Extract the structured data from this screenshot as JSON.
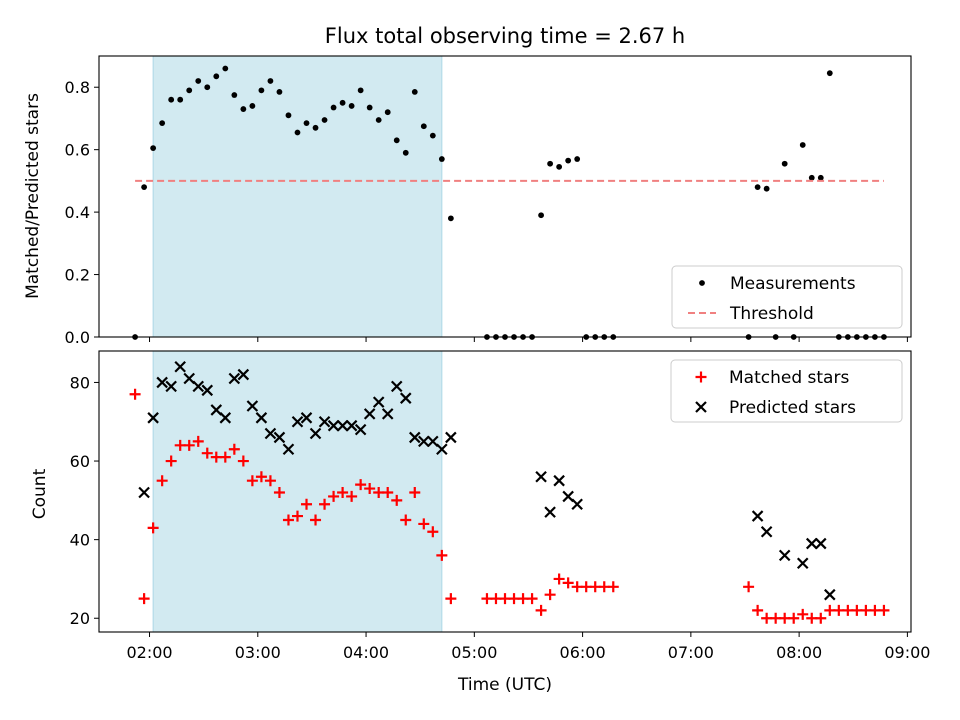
{
  "chart_data": {
    "title": "Flux total observing time = 2.67 h",
    "xlabel": "Time (UTC)",
    "x_ticks": [
      "02:00",
      "03:00",
      "04:00",
      "05:00",
      "06:00",
      "07:00",
      "08:00",
      "09:00"
    ],
    "xlim": [
      "01:32",
      "09:02"
    ],
    "shaded_interval": {
      "start": "02:02",
      "end": "04:42",
      "color": "#add8e6"
    },
    "panels": [
      {
        "type": "scatter",
        "ylabel": "Matched/Predicted stars",
        "ylim": [
          0,
          0.9
        ],
        "y_ticks": [
          "0.0",
          "0.2",
          "0.4",
          "0.6",
          "0.8"
        ],
        "legend_position": "lower-right",
        "series": [
          {
            "name": "Measurements",
            "marker": "dot",
            "color": "#000000",
            "points": [
              [
                "01:52",
                0.0
              ],
              [
                "01:57",
                0.48
              ],
              [
                "02:02",
                0.605
              ],
              [
                "02:07",
                0.685
              ],
              [
                "02:12",
                0.76
              ],
              [
                "02:17",
                0.76
              ],
              [
                "02:22",
                0.79
              ],
              [
                "02:27",
                0.82
              ],
              [
                "02:32",
                0.8
              ],
              [
                "02:37",
                0.835
              ],
              [
                "02:42",
                0.86
              ],
              [
                "02:47",
                0.775
              ],
              [
                "02:52",
                0.73
              ],
              [
                "02:57",
                0.74
              ],
              [
                "03:02",
                0.79
              ],
              [
                "03:07",
                0.82
              ],
              [
                "03:12",
                0.785
              ],
              [
                "03:17",
                0.71
              ],
              [
                "03:22",
                0.655
              ],
              [
                "03:27",
                0.685
              ],
              [
                "03:32",
                0.67
              ],
              [
                "03:37",
                0.695
              ],
              [
                "03:42",
                0.735
              ],
              [
                "03:47",
                0.75
              ],
              [
                "03:52",
                0.74
              ],
              [
                "03:57",
                0.79
              ],
              [
                "04:02",
                0.735
              ],
              [
                "04:07",
                0.695
              ],
              [
                "04:12",
                0.72
              ],
              [
                "04:17",
                0.63
              ],
              [
                "04:22",
                0.59
              ],
              [
                "04:27",
                0.785
              ],
              [
                "04:32",
                0.675
              ],
              [
                "04:37",
                0.645
              ],
              [
                "04:42",
                0.57
              ],
              [
                "04:47",
                0.38
              ],
              [
                "05:07",
                0.0
              ],
              [
                "05:12",
                0.0
              ],
              [
                "05:17",
                0.0
              ],
              [
                "05:22",
                0.0
              ],
              [
                "05:27",
                0.0
              ],
              [
                "05:32",
                0.0
              ],
              [
                "05:37",
                0.39
              ],
              [
                "05:42",
                0.555
              ],
              [
                "05:47",
                0.545
              ],
              [
                "05:52",
                0.565
              ],
              [
                "05:57",
                0.57
              ],
              [
                "06:02",
                0.0
              ],
              [
                "06:07",
                0.0
              ],
              [
                "06:12",
                0.0
              ],
              [
                "06:17",
                0.0
              ],
              [
                "07:32",
                0.0
              ],
              [
                "07:37",
                0.48
              ],
              [
                "07:42",
                0.475
              ],
              [
                "07:47",
                0.0
              ],
              [
                "07:52",
                0.555
              ],
              [
                "07:57",
                0.0
              ],
              [
                "08:02",
                0.615
              ],
              [
                "08:07",
                0.51
              ],
              [
                "08:12",
                0.51
              ],
              [
                "08:17",
                0.845
              ],
              [
                "08:22",
                0.0
              ],
              [
                "08:27",
                0.0
              ],
              [
                "08:32",
                0.0
              ],
              [
                "08:37",
                0.0
              ],
              [
                "08:42",
                0.0
              ],
              [
                "08:47",
                0.0
              ]
            ]
          },
          {
            "name": "Threshold",
            "style": "dashed-line",
            "color": "#f08080",
            "points": [
              [
                "01:52",
                0.5
              ],
              [
                "08:47",
                0.5
              ]
            ]
          }
        ]
      },
      {
        "type": "scatter",
        "ylabel": "Count",
        "ylim": [
          16.5,
          88
        ],
        "y_ticks": [
          "20",
          "40",
          "60",
          "80"
        ],
        "legend_position": "top-right",
        "series": [
          {
            "name": "Matched stars",
            "marker": "plus",
            "color": "#ff0000",
            "points": [
              [
                "01:52",
                77
              ],
              [
                "01:57",
                25
              ],
              [
                "02:02",
                43
              ],
              [
                "02:07",
                55
              ],
              [
                "02:12",
                60
              ],
              [
                "02:17",
                64
              ],
              [
                "02:22",
                64
              ],
              [
                "02:27",
                65
              ],
              [
                "02:32",
                62
              ],
              [
                "02:37",
                61
              ],
              [
                "02:42",
                61
              ],
              [
                "02:47",
                63
              ],
              [
                "02:52",
                60
              ],
              [
                "02:57",
                55
              ],
              [
                "03:02",
                56
              ],
              [
                "03:07",
                55
              ],
              [
                "03:12",
                52
              ],
              [
                "03:17",
                45
              ],
              [
                "03:22",
                46
              ],
              [
                "03:27",
                49
              ],
              [
                "03:32",
                45
              ],
              [
                "03:37",
                49
              ],
              [
                "03:42",
                51
              ],
              [
                "03:47",
                52
              ],
              [
                "03:52",
                51
              ],
              [
                "03:57",
                54
              ],
              [
                "04:02",
                53
              ],
              [
                "04:07",
                52
              ],
              [
                "04:12",
                52
              ],
              [
                "04:17",
                50
              ],
              [
                "04:22",
                45
              ],
              [
                "04:27",
                52
              ],
              [
                "04:32",
                44
              ],
              [
                "04:37",
                42
              ],
              [
                "04:42",
                36
              ],
              [
                "04:47",
                25
              ],
              [
                "05:07",
                25
              ],
              [
                "05:12",
                25
              ],
              [
                "05:17",
                25
              ],
              [
                "05:22",
                25
              ],
              [
                "05:27",
                25
              ],
              [
                "05:32",
                25
              ],
              [
                "05:37",
                22
              ],
              [
                "05:42",
                26
              ],
              [
                "05:47",
                30
              ],
              [
                "05:52",
                29
              ],
              [
                "05:57",
                28
              ],
              [
                "06:02",
                28
              ],
              [
                "06:07",
                28
              ],
              [
                "06:12",
                28
              ],
              [
                "06:17",
                28
              ],
              [
                "07:32",
                28
              ],
              [
                "07:37",
                22
              ],
              [
                "07:42",
                20
              ],
              [
                "07:47",
                20
              ],
              [
                "07:52",
                20
              ],
              [
                "07:57",
                20
              ],
              [
                "08:02",
                21
              ],
              [
                "08:07",
                20
              ],
              [
                "08:12",
                20
              ],
              [
                "08:17",
                22
              ],
              [
                "08:22",
                22
              ],
              [
                "08:27",
                22
              ],
              [
                "08:32",
                22
              ],
              [
                "08:37",
                22
              ],
              [
                "08:42",
                22
              ],
              [
                "08:47",
                22
              ]
            ]
          },
          {
            "name": "Predicted stars",
            "marker": "cross",
            "color": "#000000",
            "points": [
              [
                "01:57",
                52
              ],
              [
                "02:02",
                71
              ],
              [
                "02:07",
                80
              ],
              [
                "02:12",
                79
              ],
              [
                "02:17",
                84
              ],
              [
                "02:22",
                81
              ],
              [
                "02:27",
                79
              ],
              [
                "02:32",
                78
              ],
              [
                "02:37",
                73
              ],
              [
                "02:42",
                71
              ],
              [
                "02:47",
                81
              ],
              [
                "02:52",
                82
              ],
              [
                "02:57",
                74
              ],
              [
                "03:02",
                71
              ],
              [
                "03:07",
                67
              ],
              [
                "03:12",
                66
              ],
              [
                "03:17",
                63
              ],
              [
                "03:22",
                70
              ],
              [
                "03:27",
                71
              ],
              [
                "03:32",
                67
              ],
              [
                "03:37",
                70
              ],
              [
                "03:42",
                69
              ],
              [
                "03:47",
                69
              ],
              [
                "03:52",
                69
              ],
              [
                "03:57",
                68
              ],
              [
                "04:02",
                72
              ],
              [
                "04:07",
                75
              ],
              [
                "04:12",
                72
              ],
              [
                "04:17",
                79
              ],
              [
                "04:22",
                76
              ],
              [
                "04:27",
                66
              ],
              [
                "04:32",
                65
              ],
              [
                "04:37",
                65
              ],
              [
                "04:42",
                63
              ],
              [
                "04:47",
                66
              ],
              [
                "05:37",
                56
              ],
              [
                "05:42",
                47
              ],
              [
                "05:47",
                55
              ],
              [
                "05:52",
                51
              ],
              [
                "05:57",
                49
              ],
              [
                "07:37",
                46
              ],
              [
                "07:42",
                42
              ],
              [
                "07:52",
                36
              ],
              [
                "08:02",
                34
              ],
              [
                "08:07",
                39
              ],
              [
                "08:12",
                39
              ],
              [
                "08:17",
                26
              ]
            ]
          }
        ]
      }
    ]
  }
}
